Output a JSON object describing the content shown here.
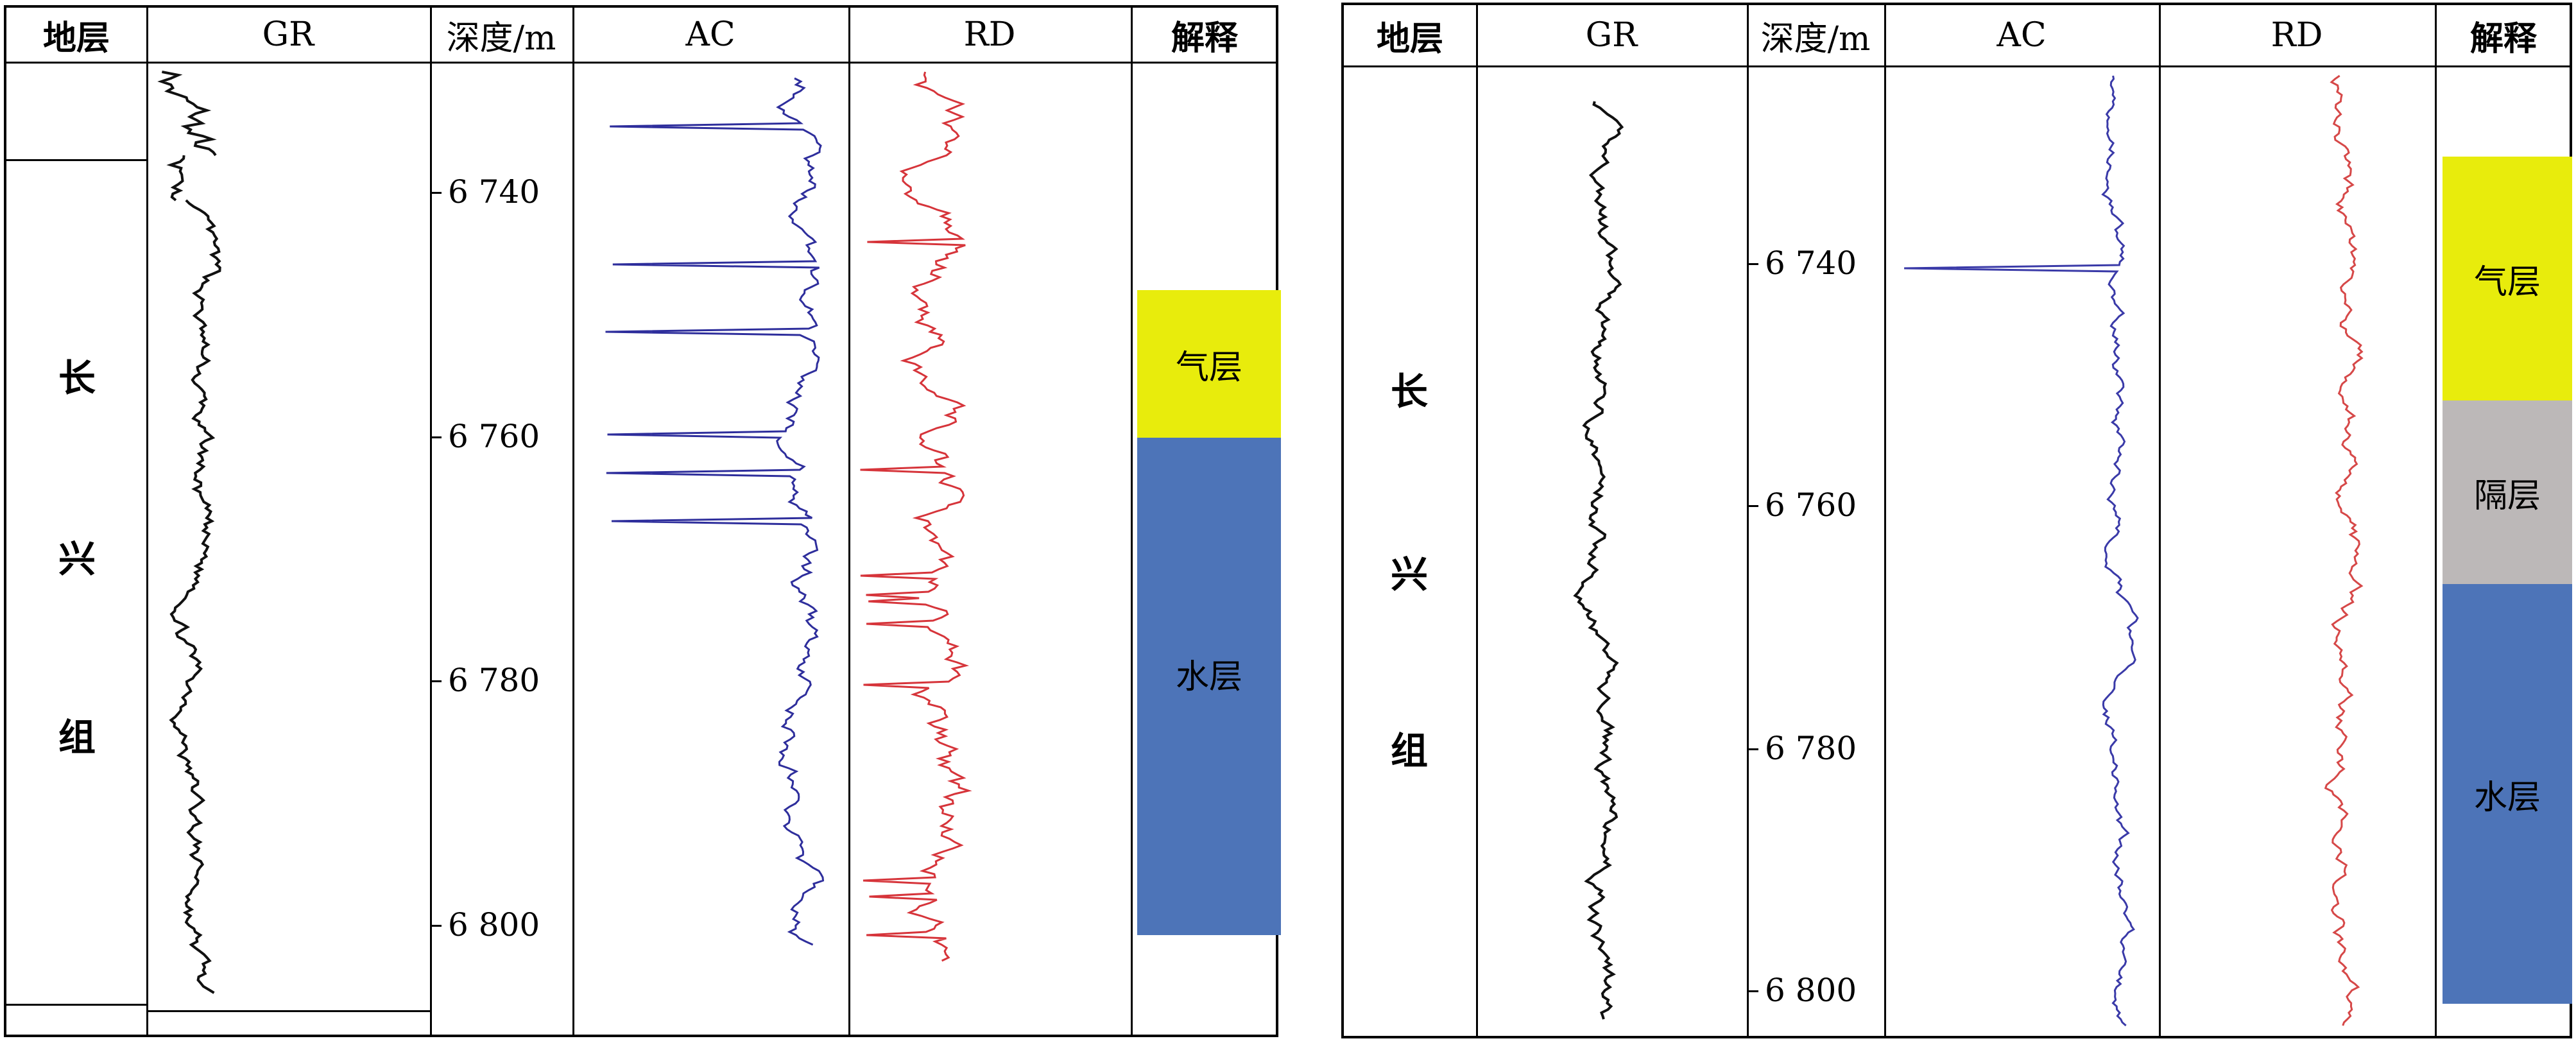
{
  "panels": [
    {
      "headers": {
        "formation": "地层",
        "gr": "GR",
        "depth": "深度/m",
        "ac": "AC",
        "rd": "RD",
        "interp": "解释"
      },
      "formation_chars": [
        "长",
        "兴",
        "组"
      ],
      "depth_ticks": [
        "6 740",
        "6 760",
        "6 780",
        "6 800"
      ],
      "zones": [
        {
          "label": "气层",
          "color": "#e8ec0c",
          "top_m": 6748,
          "bottom_m": 6760
        },
        {
          "label": "水层",
          "color": "#4d74b8",
          "top_m": 6760,
          "bottom_m": 6800.5
        }
      ],
      "curves": {
        "gr_color": "#111111",
        "ac_color": "#2e2e9c",
        "rd_color": "#d6343a"
      }
    },
    {
      "headers": {
        "formation": "地层",
        "gr": "GR",
        "depth": "深度/m",
        "ac": "AC",
        "rd": "RD",
        "interp": "解释"
      },
      "formation_chars": [
        "长",
        "兴",
        "组"
      ],
      "depth_ticks": [
        "6 740",
        "6 760",
        "6 780",
        "6 800"
      ],
      "zones": [
        {
          "label": "气层",
          "color": "#e8ec0c",
          "top_m": 6731,
          "bottom_m": 6751
        },
        {
          "label": "隔层",
          "color": "#bcb8b8",
          "top_m": 6751,
          "bottom_m": 6766
        },
        {
          "label": "水层",
          "color": "#4d74b8",
          "top_m": 6766,
          "bottom_m": 6801
        }
      ],
      "curves": {
        "gr_color": "#111111",
        "ac_color": "#3a3aa8",
        "rd_color": "#d64848"
      }
    }
  ]
}
